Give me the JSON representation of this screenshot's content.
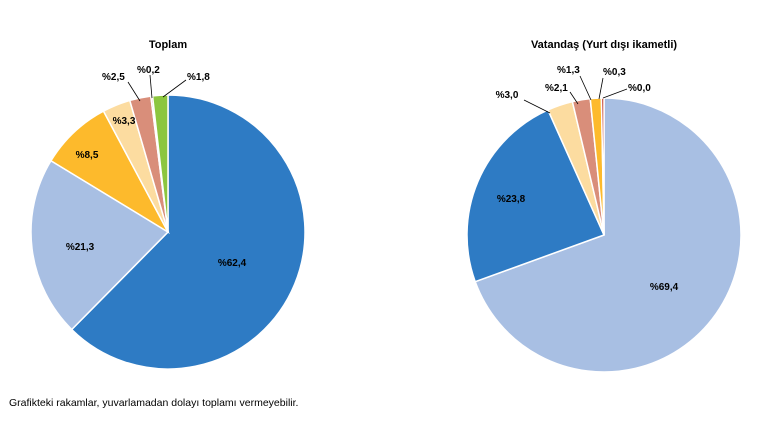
{
  "chart_data": [
    {
      "type": "pie",
      "title": "Toplam",
      "slices": [
        {
          "value": 62.4,
          "label": "%62,4",
          "color": "#2E7BC4"
        },
        {
          "value": 21.3,
          "label": "%21,3",
          "color": "#A8BFE3"
        },
        {
          "value": 8.5,
          "label": "%8,5",
          "color": "#FDBA2C"
        },
        {
          "value": 3.3,
          "label": "%3,3",
          "color": "#FCDCA0"
        },
        {
          "value": 2.5,
          "label": "%2,5",
          "color": "#D98E7A"
        },
        {
          "value": 0.2,
          "label": "%0,2",
          "color": "#C0392B"
        },
        {
          "value": 1.8,
          "label": "%1,8",
          "color": "#8CC63F"
        }
      ]
    },
    {
      "type": "pie",
      "title": "Vatandaş (Yurt dışı ikametli)",
      "slices": [
        {
          "value": 69.4,
          "label": "%69,4",
          "color": "#A8BFE3"
        },
        {
          "value": 23.8,
          "label": "%23,8",
          "color": "#2E7BC4"
        },
        {
          "value": 3.0,
          "label": "%3,0",
          "color": "#FCDCA0"
        },
        {
          "value": 2.1,
          "label": "%2,1",
          "color": "#D98E7A"
        },
        {
          "value": 1.3,
          "label": "%1,3",
          "color": "#FDBA2C"
        },
        {
          "value": 0.3,
          "label": "%0,3",
          "color": "#C0392B"
        },
        {
          "value": 0.0,
          "label": "%0,0",
          "color": "#8CC63F"
        }
      ]
    }
  ],
  "footnote": "Grafikteki rakamlar, yuvarlamadan dolayı toplamı vermeyebilir."
}
